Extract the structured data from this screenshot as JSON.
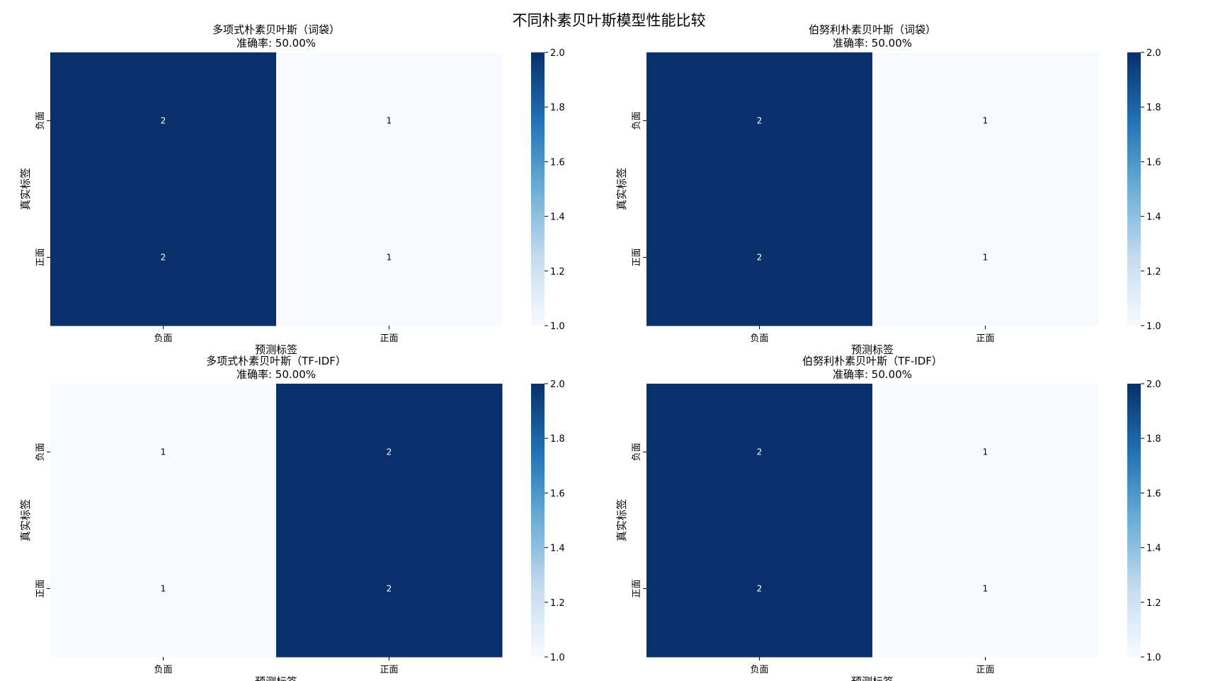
{
  "figure": {
    "suptitle": "不同朴素贝叶斯模型性能比较"
  },
  "chart_data": [
    {
      "type": "heatmap",
      "title": "多项式朴素贝叶斯（词袋）",
      "subtitle": "准确率: 50.00%",
      "xlabel": "预测标签",
      "ylabel": "真实标签",
      "x_categories": [
        "负面",
        "正面"
      ],
      "y_categories": [
        "负面",
        "正面"
      ],
      "values": [
        [
          2,
          1
        ],
        [
          2,
          1
        ]
      ],
      "colorbar": {
        "min": 1.0,
        "max": 2.0,
        "ticks": [
          "1.0",
          "1.2",
          "1.4",
          "1.6",
          "1.8",
          "2.0"
        ],
        "colormap": "Blues"
      }
    },
    {
      "type": "heatmap",
      "title": "伯努利朴素贝叶斯（词袋）",
      "subtitle": "准确率: 50.00%",
      "xlabel": "预测标签",
      "ylabel": "真实标签",
      "x_categories": [
        "负面",
        "正面"
      ],
      "y_categories": [
        "负面",
        "正面"
      ],
      "values": [
        [
          2,
          1
        ],
        [
          2,
          1
        ]
      ],
      "colorbar": {
        "min": 1.0,
        "max": 2.0,
        "ticks": [
          "1.0",
          "1.2",
          "1.4",
          "1.6",
          "1.8",
          "2.0"
        ],
        "colormap": "Blues"
      }
    },
    {
      "type": "heatmap",
      "title": "多项式朴素贝叶斯（TF-IDF）",
      "subtitle": "准确率: 50.00%",
      "xlabel": "预测标签",
      "ylabel": "真实标签",
      "x_categories": [
        "负面",
        "正面"
      ],
      "y_categories": [
        "负面",
        "正面"
      ],
      "values": [
        [
          1,
          2
        ],
        [
          1,
          2
        ]
      ],
      "colorbar": {
        "min": 1.0,
        "max": 2.0,
        "ticks": [
          "1.0",
          "1.2",
          "1.4",
          "1.6",
          "1.8",
          "2.0"
        ],
        "colormap": "Blues"
      }
    },
    {
      "type": "heatmap",
      "title": "伯努利朴素贝叶斯（TF-IDF）",
      "subtitle": "准确率: 50.00%",
      "xlabel": "预测标签",
      "ylabel": "真实标签",
      "x_categories": [
        "负面",
        "正面"
      ],
      "y_categories": [
        "负面",
        "正面"
      ],
      "values": [
        [
          2,
          1
        ],
        [
          2,
          1
        ]
      ],
      "colorbar": {
        "min": 1.0,
        "max": 2.0,
        "ticks": [
          "1.0",
          "1.2",
          "1.4",
          "1.6",
          "1.8",
          "2.0"
        ],
        "colormap": "Blues"
      }
    }
  ],
  "colors": {
    "low": "#f7fbff",
    "mid1": "#c6dbef",
    "mid2": "#6baed6",
    "mid3": "#2171b5",
    "high": "#08306b",
    "text_on_dark": "#ffffff",
    "text_on_light": "#000000"
  }
}
